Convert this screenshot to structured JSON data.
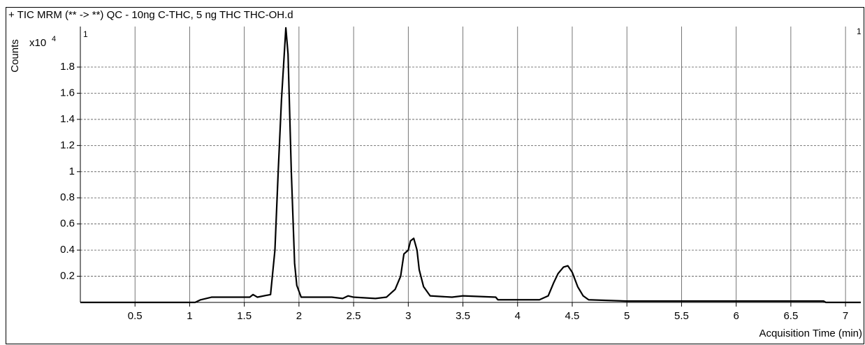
{
  "chart_data": {
    "type": "line",
    "title": "+ TIC MRM (** -> **) QC - 10ng C-THC, 5 ng THC THC-OH.d",
    "y_label": "Counts",
    "y_scale_base": "x10",
    "y_scale_exponent": "4",
    "panel_label": "1",
    "x_label": "Acquisition Time (min)",
    "xlim": [
      0,
      7.14
    ],
    "ylim": [
      0,
      2.11
    ],
    "xticks": [
      0.5,
      1,
      1.5,
      2,
      2.5,
      3,
      3.5,
      4,
      4.5,
      5,
      5.5,
      6,
      6.5,
      7
    ],
    "yticks": [
      0.2,
      0.4,
      0.6,
      0.8,
      1,
      1.2,
      1.4,
      1.6,
      1.8
    ],
    "grid": true,
    "x": [
      0,
      1.05,
      1.1,
      1.2,
      1.55,
      1.58,
      1.62,
      1.74,
      1.78,
      1.81,
      1.84,
      1.88,
      1.9,
      1.93,
      1.96,
      1.98,
      2.02,
      2.3,
      2.4,
      2.45,
      2.5,
      2.7,
      2.8,
      2.88,
      2.93,
      2.96,
      3.0,
      3.02,
      3.05,
      3.08,
      3.1,
      3.14,
      3.2,
      3.4,
      3.5,
      3.8,
      3.82,
      4.2,
      4.28,
      4.33,
      4.37,
      4.42,
      4.46,
      4.5,
      4.55,
      4.6,
      4.65,
      5,
      6,
      6.8,
      6.82,
      7.14
    ],
    "series": [
      {
        "name": "TIC",
        "color": "#000000",
        "values": [
          0,
          0,
          0.02,
          0.04,
          0.04,
          0.06,
          0.04,
          0.06,
          0.4,
          1.0,
          1.55,
          2.1,
          1.9,
          1.0,
          0.3,
          0.13,
          0.04,
          0.04,
          0.03,
          0.05,
          0.04,
          0.03,
          0.04,
          0.1,
          0.2,
          0.37,
          0.4,
          0.47,
          0.49,
          0.4,
          0.25,
          0.12,
          0.05,
          0.04,
          0.05,
          0.04,
          0.02,
          0.02,
          0.05,
          0.15,
          0.22,
          0.27,
          0.28,
          0.23,
          0.12,
          0.05,
          0.02,
          0.01,
          0.01,
          0.01,
          0,
          0
        ]
      }
    ]
  }
}
